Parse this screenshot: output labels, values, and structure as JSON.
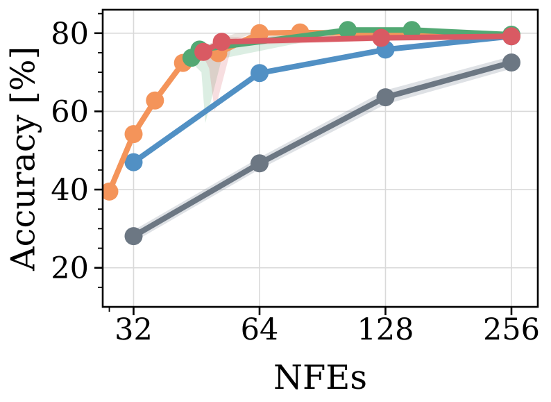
{
  "chart_data": {
    "type": "line",
    "title": "",
    "xlabel": "NFEs",
    "ylabel": "Accuracy [%]",
    "x_scale": "log2",
    "xlim": [
      27,
      296
    ],
    "ylim": [
      10,
      86
    ],
    "grid": true,
    "legend": "none",
    "x_ticks": [
      {
        "value": 32,
        "label": "32"
      },
      {
        "value": 64,
        "label": "64"
      },
      {
        "value": 128,
        "label": "128"
      },
      {
        "value": 256,
        "label": "256"
      }
    ],
    "x_minor_ticks": [
      28
    ],
    "y_ticks": [
      {
        "value": 20,
        "label": "20"
      },
      {
        "value": 40,
        "label": "40"
      },
      {
        "value": 60,
        "label": "60"
      },
      {
        "value": 80,
        "label": "80"
      }
    ],
    "y_minor_ticks": [
      15,
      25,
      30,
      35,
      45,
      50,
      55,
      65,
      70,
      75,
      85
    ],
    "series": [
      {
        "name": "gray",
        "color": "#6C7783",
        "points": [
          [
            32,
            28.1
          ],
          [
            64,
            46.7
          ],
          [
            128,
            63.6
          ],
          [
            256,
            72.5
          ]
        ]
      },
      {
        "name": "blue",
        "color": "#5190C4",
        "points": [
          [
            32,
            47.0
          ],
          [
            64,
            69.8
          ],
          [
            128,
            75.8
          ],
          [
            256,
            79.2
          ]
        ]
      },
      {
        "name": "orange",
        "color": "#F4945A",
        "points": [
          [
            28,
            39.5
          ],
          [
            32,
            54.2
          ],
          [
            36,
            62.8
          ],
          [
            42,
            72.4
          ],
          [
            51,
            74.9
          ],
          [
            64,
            80.0
          ],
          [
            80,
            80.2
          ],
          [
            256,
            79.4
          ]
        ]
      },
      {
        "name": "green",
        "color": "#52A873",
        "points": [
          [
            44,
            73.7
          ],
          [
            46,
            75.8
          ],
          [
            104,
            80.8
          ],
          [
            148,
            80.8
          ],
          [
            256,
            79.6
          ]
        ]
      },
      {
        "name": "red",
        "color": "#D95A63",
        "points": [
          [
            47,
            75.2
          ],
          [
            52,
            77.8
          ],
          [
            125,
            78.8
          ],
          [
            256,
            79.2
          ]
        ]
      }
    ],
    "bands": [
      {
        "name": "gray-ci-band",
        "color": "#8A95A0",
        "opacity": 0.28,
        "polygon": [
          [
            32,
            29.6
          ],
          [
            64,
            48.2
          ],
          [
            128,
            65.4
          ],
          [
            256,
            74.1
          ],
          [
            256,
            70.9
          ],
          [
            128,
            61.8
          ],
          [
            64,
            45.2
          ],
          [
            32,
            26.6
          ]
        ]
      },
      {
        "name": "green-ci-band",
        "color": "#52A873",
        "opacity": 0.2,
        "polygon": [
          [
            44,
            74.8
          ],
          [
            46,
            77.0
          ],
          [
            104,
            81.6
          ],
          [
            148,
            81.6
          ],
          [
            256,
            80.3
          ],
          [
            256,
            78.9
          ],
          [
            148,
            80.0
          ],
          [
            104,
            80.0
          ],
          [
            52,
            73.5
          ],
          [
            47.5,
            57.0
          ],
          [
            46.5,
            70.0
          ],
          [
            44,
            72.5
          ]
        ]
      },
      {
        "name": "red-ci-band",
        "color": "#D95A63",
        "opacity": 0.2,
        "polygon": [
          [
            47,
            76.3
          ],
          [
            52,
            79.0
          ],
          [
            125,
            79.6
          ],
          [
            256,
            79.9
          ],
          [
            256,
            78.5
          ],
          [
            125,
            78.0
          ],
          [
            55,
            76.9
          ],
          [
            50,
            60.0
          ],
          [
            48.5,
            71.0
          ],
          [
            47,
            74.0
          ]
        ]
      },
      {
        "name": "tan-ci-band",
        "color": "#B9A695",
        "opacity": 0.3,
        "polygon": [
          [
            50,
            78.2
          ],
          [
            56,
            79.9
          ],
          [
            64,
            80.3
          ],
          [
            55,
            78.3
          ]
        ]
      }
    ],
    "style": {
      "line_width": 8,
      "marker_radius": 13,
      "grid_color": "#D9D9D9",
      "spine_color": "#000000",
      "tick_label_size": 43,
      "axis_label_size": 48
    }
  }
}
